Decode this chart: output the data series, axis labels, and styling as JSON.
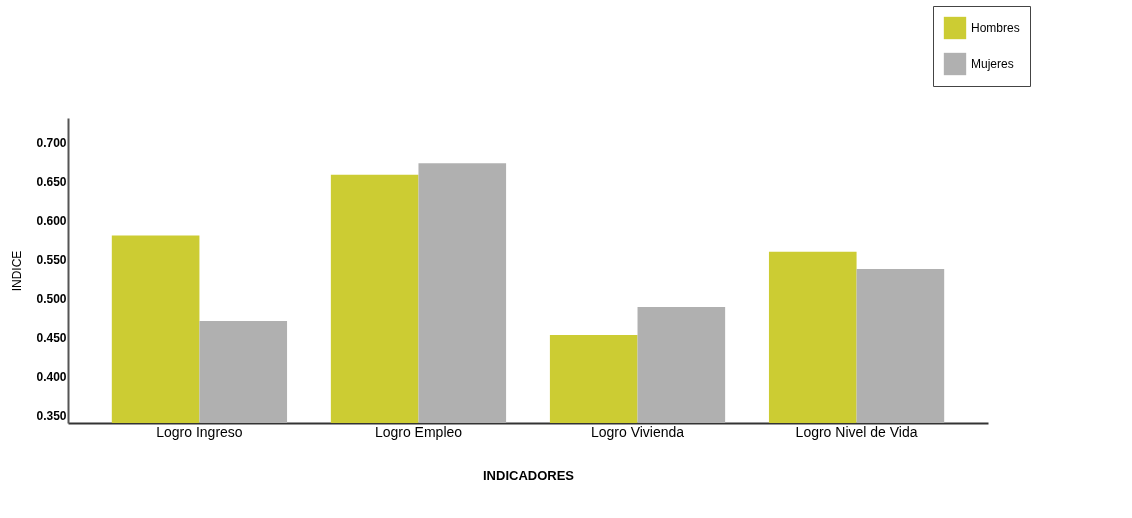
{
  "chart_data": {
    "type": "bar",
    "xlabel": "INDICADORES",
    "ylabel": "INDICE",
    "categories": [
      "Logro Ingreso",
      "Logro Empleo",
      "Logro Vivienda",
      "Logro Nivel de Vida"
    ],
    "series": [
      {
        "name": "Hombres",
        "color": "#cccc33",
        "values": [
          0.581,
          0.659,
          0.453,
          0.56
        ]
      },
      {
        "name": "Mujeres",
        "color": "#b0b0b0",
        "values": [
          0.471,
          0.674,
          0.489,
          0.538
        ]
      }
    ],
    "ylim": [
      0.34,
      0.732
    ],
    "yticks": [
      {
        "value": 0.35,
        "label": "0.350"
      },
      {
        "value": 0.4,
        "label": "0.400"
      },
      {
        "value": 0.45,
        "label": "0.450"
      },
      {
        "value": 0.5,
        "label": "0.500"
      },
      {
        "value": 0.55,
        "label": "0.550"
      },
      {
        "value": 0.6,
        "label": "0.600"
      },
      {
        "value": 0.65,
        "label": "0.650"
      },
      {
        "value": 0.7,
        "label": "0.700"
      }
    ],
    "grid": false,
    "legend": "top right"
  }
}
